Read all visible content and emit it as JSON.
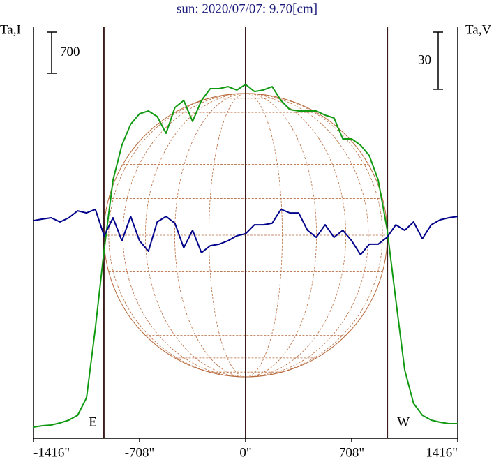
{
  "chart_data": {
    "type": "line",
    "title": "sun: 2020/07/07: 9.70[cm]",
    "y_label": "Ta,I",
    "y2_label": "Ta,V",
    "xlim": [
      -1416,
      1416
    ],
    "xticks": [
      {
        "value": -1416,
        "label": "-1416\""
      },
      {
        "value": -708,
        "label": "-708\""
      },
      {
        "value": 0,
        "label": "0\""
      },
      {
        "value": 708,
        "label": "708\""
      },
      {
        "value": 1416,
        "label": "1416\""
      }
    ],
    "ylim": [
      0,
      7000
    ],
    "y2lim": [
      -108,
      108
    ],
    "i_scale": 700,
    "v_scale": 30,
    "markers": [
      {
        "x": -946,
        "label": "E"
      },
      {
        "x": 946,
        "label": "W"
      }
    ],
    "x": [
      -1416,
      -1357,
      -1298,
      -1239,
      -1180,
      -1121,
      -1062,
      -1003,
      -944,
      -885,
      -826,
      -767,
      -708,
      -649,
      -590,
      -531,
      -472,
      -413,
      -354,
      -295,
      -236,
      -177,
      -118,
      -59,
      0,
      59,
      118,
      177,
      236,
      295,
      354,
      413,
      472,
      531,
      590,
      649,
      708,
      767,
      826,
      885,
      944,
      1003,
      1062,
      1121,
      1180,
      1239,
      1298,
      1357,
      1416
    ],
    "series": [
      {
        "name": "Ta,I",
        "color": "#119911",
        "values": [
          190,
          214,
          225,
          261,
          308,
          391,
          688,
          1874,
          3203,
          4390,
          4983,
          5339,
          5517,
          5564,
          5469,
          5185,
          5623,
          5742,
          5386,
          5742,
          5944,
          5944,
          5979,
          5920,
          6015,
          5896,
          5920,
          5979,
          5742,
          5588,
          5564,
          5564,
          5564,
          5493,
          5446,
          5090,
          5090,
          4983,
          4805,
          4390,
          3559,
          2349,
          1163,
          593,
          391,
          308,
          273,
          249,
          249
        ]
      },
      {
        "name": "Ta,V",
        "color": "#00008b",
        "axis": "y2",
        "values": [
          6.2,
          7.0,
          7.7,
          5.5,
          7.7,
          11.3,
          10.2,
          12.1,
          -1.8,
          7.7,
          -4.4,
          8.4,
          -4.4,
          -9.9,
          5.5,
          8.4,
          4.8,
          -8.1,
          1.1,
          -10.6,
          -7.0,
          -6.2,
          -4.4,
          -1.8,
          -0.7,
          4.0,
          4.0,
          4.8,
          12.1,
          10.2,
          10.2,
          1.1,
          -2.6,
          4.0,
          -2.6,
          1.1,
          -4.4,
          -11.7,
          -6.2,
          -6.2,
          -2.6,
          4.0,
          1.1,
          5.5,
          -3.3,
          4.0,
          6.6,
          7.7,
          8.4
        ]
      }
    ]
  }
}
